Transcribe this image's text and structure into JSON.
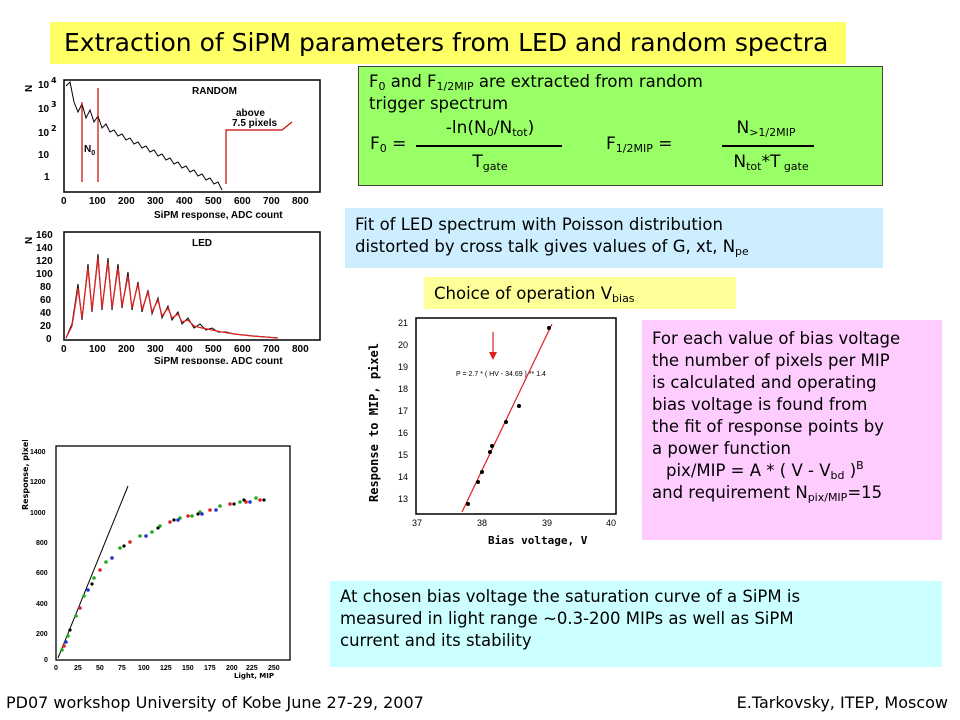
{
  "title": "Extraction of SiPM parameters from LED and random spectra",
  "green_box": {
    "line1_a": "F",
    "line1_sub0": "0",
    "line1_b": " and F",
    "line1_sub1": "1/2MIP",
    "line1_c": " are extracted from random",
    "line2": "trigger spectrum",
    "f0_label": "F",
    "f0_sub": "0",
    "f0_eq": " =",
    "f0_num_a": "-ln(N",
    "f0_num_sub0": "0",
    "f0_num_b": "/N",
    "f0_num_subtot": "tot",
    "f0_num_c": ")",
    "f0_den": "T",
    "f0_den_sub": "gate",
    "fh_label": "F",
    "fh_sub": "1/2MIP",
    "fh_eq": " =",
    "fh_num": "N",
    "fh_num_sub": ">1/2MIP",
    "fh_den_a": "N",
    "fh_den_sub_tot": "tot",
    "fh_den_b": "*T",
    "fh_den_sub_gate": " gate"
  },
  "led_box": {
    "line1": "Fit of LED spectrum with Poisson distribution",
    "line2_a": "distorted by cross talk gives values of G, xt, N",
    "line2_sub": "pe"
  },
  "choice_box": {
    "text": "Choice of operation V",
    "sub": "bias"
  },
  "pink_box": {
    "lines": [
      "For each value of bias voltage",
      "the number of pixels per MIP",
      "is calculated and operating",
      "bias voltage is found from",
      "the fit of response points by",
      "a power function"
    ],
    "formula_a": "pix/MIP = A * ( V - V",
    "formula_sub": "bd",
    "formula_b": " )",
    "formula_sup": "B",
    "req_a": "and requirement N",
    "req_sub": "pix/MIP",
    "req_b": "=15"
  },
  "sat_box": {
    "lines": [
      "At chosen bias voltage the saturation curve of a SiPM is",
      "measured in light range ~0.3-200 MIPs as well as SiPM",
      "current and its stability"
    ]
  },
  "footer": {
    "left": "PD07 workshop   University of Kobe   June  27-29,  2007",
    "right": "E.Tarkovsky, ITEP, Moscow"
  },
  "random_plot": {
    "label": "RANDOM",
    "ylabel": "N",
    "xlabel": "SiPM response, ADC count",
    "xticks": [
      "0",
      "100",
      "200",
      "300",
      "400",
      "500",
      "600",
      "700",
      "800"
    ],
    "yticks": [
      "1",
      "10",
      "10",
      "10",
      "10"
    ],
    "yexps": [
      "",
      "",
      "2",
      "3",
      "4"
    ],
    "annotation_a": "above",
    "annotation_b": "7.5 pixels",
    "n0_label": "N",
    "n0_sub": "0"
  },
  "led_plot": {
    "label": "LED",
    "ylabel": "N",
    "xlabel": "SiPM response, ADC count",
    "xticks": [
      "0",
      "100",
      "200",
      "300",
      "400",
      "500",
      "600",
      "700",
      "800"
    ],
    "yticks": [
      "0",
      "20",
      "40",
      "60",
      "80",
      "100",
      "120",
      "140",
      "160"
    ]
  },
  "bias_plot": {
    "ylabel": "Response to MIP, pixel",
    "xlabel": "Bias voltage, V",
    "fit_label": "P = 2.7 * ( HV - 34.69 ) ** 1.4",
    "xticks": [
      "37",
      "38",
      "39",
      "40"
    ],
    "yticks": [
      "13",
      "14",
      "15",
      "16",
      "17",
      "18",
      "19",
      "20",
      "21"
    ]
  },
  "sat_plot": {
    "ylabel": "Response, pixels",
    "xlabel": "Light, MIP",
    "xticks": [
      "0",
      "25",
      "50",
      "75",
      "100",
      "125",
      "150",
      "175",
      "200",
      "225",
      "250"
    ],
    "yticks": [
      "0",
      "200",
      "400",
      "600",
      "800",
      "1000",
      "1200",
      "1400"
    ]
  },
  "colors": {
    "title_bg": "#ffff66",
    "green_bg": "#99ff66",
    "blue_bg": "#cceeff",
    "gold_bg": "#ffff99",
    "pink_bg": "#ffccff",
    "cyan_bg": "#ccffff",
    "fit_red": "#dd2222"
  }
}
